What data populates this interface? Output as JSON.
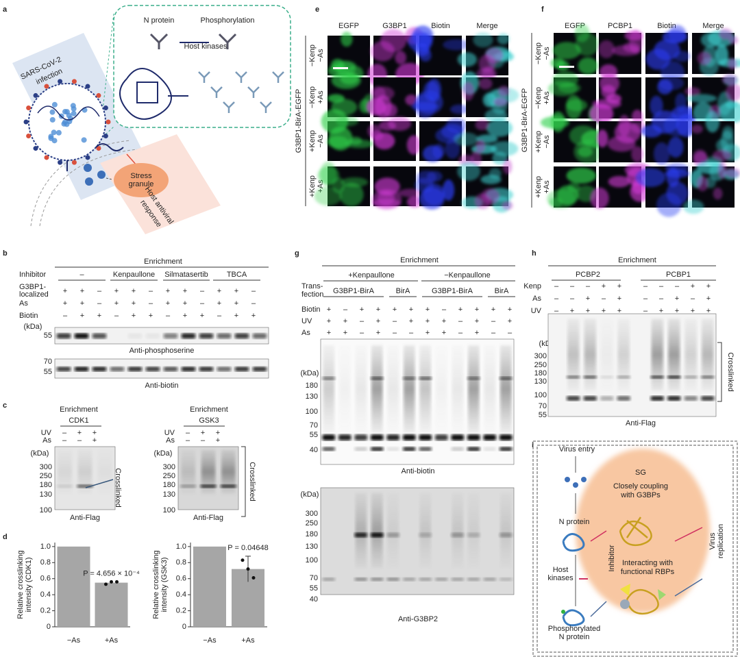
{
  "figure": {
    "a": {
      "label": "a",
      "n_protein": "N protein",
      "phosphorylation": "Phosphorylation",
      "host_kinases": "Host kinases",
      "infection": [
        "SARS-CoV-2",
        "infection"
      ],
      "stress_granule": [
        "Stress",
        "granule"
      ],
      "response": [
        "Host antiviral",
        "response"
      ]
    },
    "e": {
      "label": "e",
      "columns": [
        "EGFP",
        "G3BP1",
        "Biotin",
        "Merge"
      ],
      "rows": [
        [
          "−Kenp",
          "−As"
        ],
        [
          "−Kenp",
          "+As"
        ],
        [
          "+Kenp",
          "−As"
        ],
        [
          "+Kenp",
          "+As"
        ]
      ],
      "side": "G3BP1-BirA-EGFP"
    },
    "f": {
      "label": "f",
      "columns": [
        "EGFP",
        "PCBP1",
        "Biotin",
        "Merge"
      ],
      "rows": [
        [
          "−Kenp",
          "−As"
        ],
        [
          "−Kenp",
          "+As"
        ],
        [
          "+Kenp",
          "−As"
        ],
        [
          "+Kenp",
          "+As"
        ]
      ],
      "side": "G3BP1-BirA-EGFP"
    },
    "b": {
      "label": "b",
      "enrichment": "Enrichment",
      "inhibitor": "Inhibitor",
      "groups": [
        "–",
        "Kenpaullone",
        "Silmatasertib",
        "TBCA"
      ],
      "conditions": [
        {
          "name": [
            "G3BP1-",
            "localized"
          ],
          "signs": [
            "+",
            "+",
            "–",
            "+",
            "+",
            "–",
            "+",
            "+",
            "–",
            "+",
            "+",
            "–"
          ]
        },
        {
          "name": [
            "As"
          ],
          "signs": [
            "+",
            "+",
            "–",
            "+",
            "+",
            "–",
            "+",
            "+",
            "–",
            "+",
            "+",
            "–"
          ]
        },
        {
          "name": [
            "Biotin"
          ],
          "signs": [
            "–",
            "+",
            "+",
            "–",
            "+",
            "+",
            "–",
            "+",
            "+",
            "–",
            "+",
            "+"
          ]
        }
      ],
      "kda": "(kDa)",
      "blots": [
        {
          "markers": [
            "55"
          ],
          "antibody": "Anti-phosphoserine"
        },
        {
          "markers": [
            "70",
            "55"
          ],
          "antibody": "Anti-biotin"
        }
      ]
    },
    "c": {
      "label": "c",
      "blots": [
        {
          "enrichment": "Enrichment",
          "target": "CDK1",
          "conditions": [
            {
              "name": "UV",
              "signs": [
                "–",
                "+",
                "+"
              ]
            },
            {
              "name": "As",
              "signs": [
                "–",
                "–",
                "+"
              ]
            }
          ],
          "kda": "(kDa)",
          "markers": [
            "300",
            "250",
            "180",
            "130",
            "100"
          ],
          "crosslinked": "Crosslinked",
          "antibody": "Anti-Flag"
        },
        {
          "enrichment": "Enrichment",
          "target": "GSK3",
          "conditions": [
            {
              "name": "UV",
              "signs": [
                "–",
                "+",
                "+"
              ]
            },
            {
              "name": "As",
              "signs": [
                "–",
                "–",
                "+"
              ]
            }
          ],
          "kda": "(kDa)",
          "markers": [
            "300",
            "250",
            "180",
            "130",
            "100"
          ],
          "crosslinked": "Crosslinked",
          "antibody": "Anti-Flag"
        }
      ]
    },
    "d": {
      "label": "d",
      "charts": [
        {
          "type": "bar",
          "ylabel": [
            "Relative crosslinking",
            "intensity (CDK1)"
          ],
          "categories": [
            "−As",
            "+As"
          ],
          "values": [
            1,
            0.55
          ],
          "points": [
            0.53,
            0.56,
            0.56
          ],
          "ylim": [
            0,
            1.05
          ],
          "yticks": [
            0,
            0.2,
            0.4,
            0.6,
            0.8,
            {
              "value": 1,
              "label": "1.0"
            }
          ],
          "annotation": "P = 4.656 × 10⁻⁴",
          "color": "#a6a6a6"
        },
        {
          "type": "bar",
          "ylabel": [
            "Relative crosslinking",
            "intensity (GSK3)"
          ],
          "categories": [
            "−As",
            "+As"
          ],
          "values": [
            1,
            0.72
          ],
          "error": 0.16,
          "points": [
            0.83,
            0.72,
            0.61
          ],
          "ylim": [
            0,
            1.05
          ],
          "yticks": [
            0,
            0.2,
            0.4,
            0.6,
            0.8,
            {
              "value": 1,
              "label": "1.0"
            }
          ],
          "annotation": "P = 0.04648",
          "color": "#a6a6a6"
        }
      ]
    },
    "g": {
      "label": "g",
      "enrichment": "Enrichment",
      "groups": [
        "+Kenpaullone",
        "−Kenpaullone"
      ],
      "transfection": [
        "Trans-",
        "fection"
      ],
      "constructs": [
        "G3BP1-BirA",
        "BirA",
        "G3BP1-BirA",
        "BirA"
      ],
      "conditions": [
        {
          "name": "Biotin",
          "signs": [
            "+",
            "–",
            "+",
            "+",
            "+",
            "+",
            "+",
            "–",
            "+",
            "+",
            "+",
            "+"
          ]
        },
        {
          "name": "UV",
          "signs": [
            "+",
            "+",
            "–",
            "+",
            "–",
            "+",
            "+",
            "+",
            "–",
            "+",
            "–",
            "+"
          ]
        },
        {
          "name": "As",
          "signs": [
            "+",
            "+",
            "–",
            "+",
            "–",
            "–",
            "+",
            "+",
            "–",
            "+",
            "–",
            "–"
          ]
        }
      ],
      "kda": "(kDa)",
      "blots": [
        {
          "markers": [
            "180",
            "130",
            "100",
            "70",
            "55",
            "40"
          ],
          "antibody": "Anti-biotin"
        },
        {
          "markers": [
            "300",
            "250",
            "180",
            "130",
            "100",
            "70",
            "55",
            "40"
          ],
          "antibody": "Anti-G3BP2"
        }
      ]
    },
    "h": {
      "label": "h",
      "enrichment": "Enrichment",
      "groups": [
        "PCBP2",
        "PCBP1"
      ],
      "conditions": [
        {
          "name": "Kenp",
          "signs": [
            "–",
            "–",
            "–",
            "+",
            "+",
            "–",
            "–",
            "–",
            "+",
            "+"
          ]
        },
        {
          "name": "As",
          "signs": [
            "–",
            "–",
            "+",
            "–",
            "+",
            "–",
            "–",
            "+",
            "–",
            "+"
          ]
        },
        {
          "name": "UV",
          "signs": [
            "–",
            "+",
            "+",
            "+",
            "+",
            "–",
            "+",
            "+",
            "+",
            "+"
          ]
        }
      ],
      "kda": "(kDa)",
      "markers": [
        "300",
        "250",
        "180",
        "130",
        "100",
        "70",
        "55"
      ],
      "crosslinked": "Crosslinked",
      "antibody": "Anti-Flag"
    },
    "i": {
      "label": "i",
      "virus_entry": "Virus entry",
      "n_protein": "N protein",
      "host_kinases": [
        "Host",
        "kinases"
      ],
      "inhibitor": "Inhibitor",
      "phosphorylated": [
        "Phosphorylated",
        "N protein"
      ],
      "sg": "SG",
      "coupling": [
        "Closely coupling",
        "with G3BPs"
      ],
      "interacting": [
        "Interacting with",
        "functional RBPs"
      ],
      "replication": [
        "Virus",
        "replication"
      ]
    }
  }
}
